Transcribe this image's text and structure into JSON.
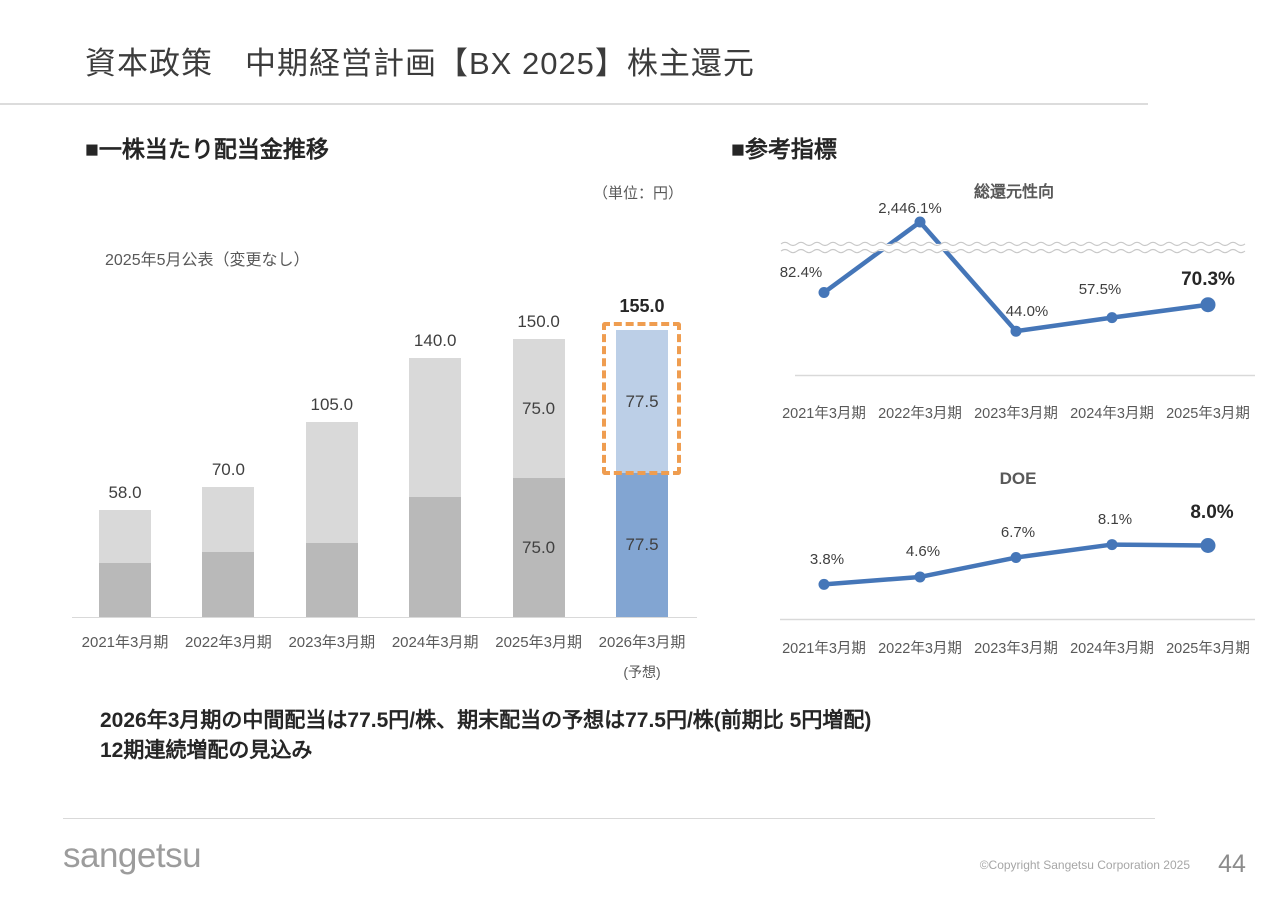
{
  "slide": {
    "title": "資本政策　中期経営計画【BX 2025】株主還元",
    "logo_text": "sangetsu",
    "copyright": "©Copyright Sangetsu Corporation 2025",
    "page_number": "44"
  },
  "dividend_section": {
    "heading": "■一株当たり配当金推移",
    "unit_note": "（単位：円）",
    "announce_note": "2025年5月公表（変更なし）"
  },
  "reference_section": {
    "heading": "■参考指標"
  },
  "message": {
    "line1": "2026年3月期の中間配当は77.5円/株、期末配当の予想は77.5円/株(前期比 5円増配)",
    "line2": "12期連続増配の見込み"
  },
  "colors": {
    "bar_bottom_gray": "#b9b9b9",
    "bar_top_gray": "#d9d9d9",
    "forecast_bottom_blue": "#82a5d2",
    "forecast_top_blue": "#bccfe7",
    "highlight_orange": "#ef9d50",
    "line_blue": "#4576b8",
    "axis_gray": "#d9d9d9"
  },
  "chart_data": [
    {
      "id": "dividend_per_share",
      "type": "bar",
      "stacked": true,
      "title": "一株当たり配当金推移",
      "unit": "円",
      "ylim": [
        0,
        160
      ],
      "categories": [
        "2021年3月期",
        "2022年3月期",
        "2023年3月期",
        "2024年3月期",
        "2025年3月期",
        "2026年3月期"
      ],
      "series": [
        {
          "name": "bottom",
          "values": [
            29.0,
            35.0,
            40.0,
            65.0,
            75.0,
            77.5
          ]
        },
        {
          "name": "top",
          "values": [
            29.0,
            35.0,
            65.0,
            75.0,
            75.0,
            77.5
          ]
        }
      ],
      "totals": [
        58.0,
        70.0,
        105.0,
        140.0,
        150.0,
        155.0
      ],
      "total_labels": [
        "58.0",
        "70.0",
        "105.0",
        "140.0",
        "150.0",
        "155.0"
      ],
      "segment_labels_bottom": [
        null,
        null,
        null,
        null,
        "75.0",
        "77.5"
      ],
      "segment_labels_top": [
        null,
        null,
        null,
        null,
        "75.0",
        "77.5"
      ],
      "forecast_index": 5,
      "forecast_note": "(予想)",
      "highlight": "top segment of 2026年3月期 outlined with orange dashed box"
    },
    {
      "id": "total_return_ratio",
      "type": "line",
      "title": "総還元性向",
      "categories": [
        "2021年3月期",
        "2022年3月期",
        "2023年3月期",
        "2024年3月期",
        "2025年3月期"
      ],
      "values": [
        82.4,
        2446.1,
        44.0,
        57.5,
        70.3
      ],
      "labels": [
        "82.4%",
        "2,446.1%",
        "44.0%",
        "57.5%",
        "70.3%"
      ],
      "axis_break": true,
      "ylim": [
        0,
        100
      ],
      "grid": false,
      "legend": false
    },
    {
      "id": "doe",
      "type": "line",
      "title": "DOE",
      "categories": [
        "2021年3月期",
        "2022年3月期",
        "2023年3月期",
        "2024年3月期",
        "2025年3月期"
      ],
      "values": [
        3.8,
        4.6,
        6.7,
        8.1,
        8.0
      ],
      "labels": [
        "3.8%",
        "4.6%",
        "6.7%",
        "8.1%",
        "8.0%"
      ],
      "axis_break": false,
      "ylim": [
        0,
        10
      ],
      "grid": false,
      "legend": false
    }
  ]
}
